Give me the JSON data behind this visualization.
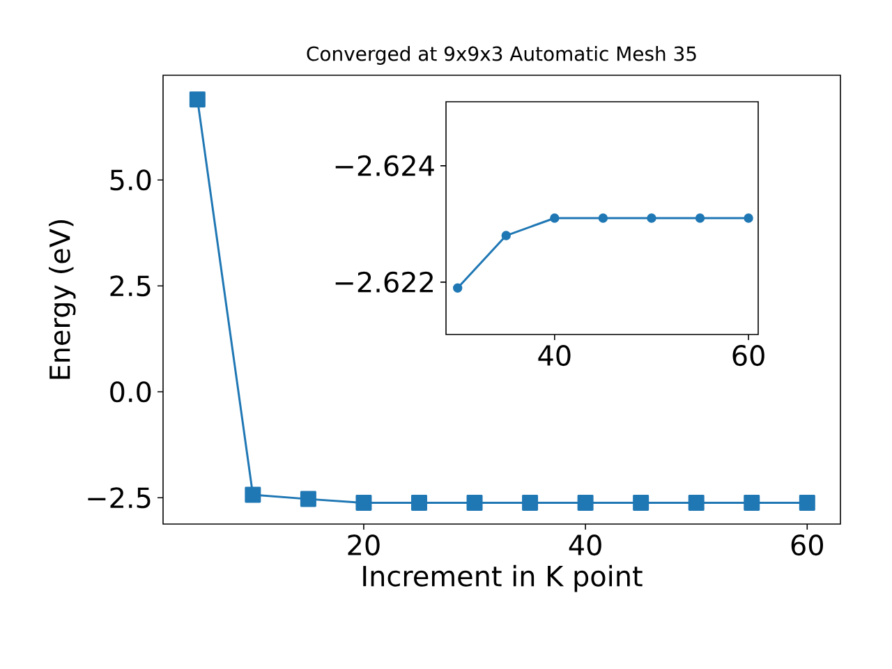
{
  "chart_data": [
    {
      "type": "line",
      "title": "Converged at 9x9x3 Automatic Mesh 35",
      "xlabel": "Increment in K point",
      "ylabel": "Energy (eV)",
      "marker": "square",
      "line_style": "solid",
      "x": [
        5,
        10,
        15,
        20,
        25,
        30,
        35,
        40,
        45,
        50,
        55,
        60
      ],
      "series": [
        {
          "color": "#1f77b4",
          "values": [
            6.9,
            -2.43,
            -2.53,
            -2.62,
            -2.62,
            -2.62,
            -2.62,
            -2.62,
            -2.62,
            -2.62,
            -2.62,
            -2.62
          ]
        }
      ],
      "xlim": [
        1.9,
        63.0
      ],
      "ylim": [
        -3.12,
        7.47
      ],
      "xticks": [
        20,
        40,
        60
      ],
      "yticks": [
        {
          "value": -2.5,
          "label": "−2.5"
        },
        {
          "value": 0,
          "label": "0.0"
        },
        {
          "value": 2.5,
          "label": "2.5"
        },
        {
          "value": 5,
          "label": "5.0"
        }
      ]
    },
    {
      "type": "line",
      "marker": "circle",
      "line_style": "solid",
      "x": [
        30,
        35,
        40,
        45,
        50,
        55,
        60
      ],
      "series": [
        {
          "color": "#1f77b4",
          "values": [
            -2.6219,
            -2.6228,
            -2.6231,
            -2.6231,
            -2.6231,
            -2.6231,
            -2.6231
          ]
        }
      ],
      "xlim": [
        28.8,
        61.0
      ],
      "ylim": [
        -2.6211,
        -2.6251
      ],
      "xticks": [
        40,
        60
      ],
      "yticks": [
        {
          "value": -2.622,
          "label": "−2.622"
        },
        {
          "value": -2.624,
          "label": "−2.624"
        }
      ]
    }
  ]
}
